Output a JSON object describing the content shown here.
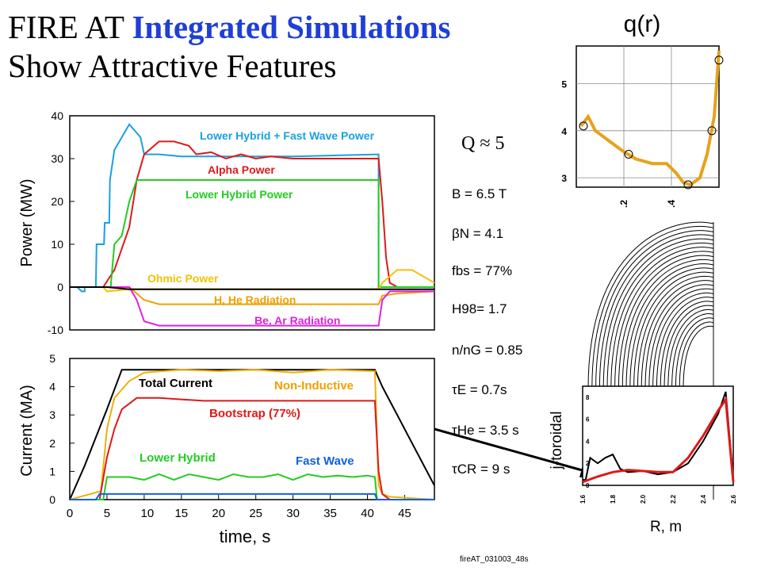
{
  "title": {
    "line1_prefix": "FIRE AT ",
    "line1_highlight": "Integrated Simulations",
    "line2": "Show Attractive Features"
  },
  "q_ratio": "Q ≈ 5",
  "params": [
    {
      "label": "B = 6.5 T"
    },
    {
      "label": "βN = 4.1"
    },
    {
      "label": "fbs = 77%"
    },
    {
      "label": "H98= 1.7"
    },
    {
      "label": "n/nG = 0.85"
    },
    {
      "label": "τE = 0.7s"
    },
    {
      "label": "τHe = 3.5 s"
    },
    {
      "label": "τCR = 9 s"
    }
  ],
  "footer": "fireAT_031003_48s",
  "colors": {
    "title_highlight": "#1f3fd6",
    "cyan": "#1aa0e0",
    "red": "#e01818",
    "green": "#22cc22",
    "yellow": "#f2c200",
    "orange": "#f0a000",
    "magenta": "#e020e0",
    "blue": "#1060e0",
    "black": "#000000",
    "q_orange": "#e6a21a"
  },
  "chart_data": [
    {
      "type": "line",
      "ylabel": "Power (MW)",
      "ylim": [
        -10,
        40
      ],
      "xlim": [
        0,
        49
      ],
      "yticks": [
        "40",
        "30",
        "20",
        "10",
        "0",
        "-10"
      ],
      "series": [
        {
          "name": "Lower Hybrid + Fast Wave Power",
          "color": "#1aa0e0",
          "points": [
            [
              0,
              0
            ],
            [
              1,
              0
            ],
            [
              1.6,
              -1
            ],
            [
              2,
              -1
            ],
            [
              2,
              0
            ],
            [
              3.5,
              0
            ],
            [
              3.6,
              10
            ],
            [
              4.6,
              10
            ],
            [
              4.7,
              15
            ],
            [
              5.3,
              15
            ],
            [
              5.4,
              25
            ],
            [
              6,
              32
            ],
            [
              7,
              35
            ],
            [
              8,
              38
            ],
            [
              9,
              36
            ],
            [
              9.5,
              35
            ],
            [
              10,
              31
            ],
            [
              12,
              31
            ],
            [
              15,
              30.5
            ],
            [
              20,
              30.5
            ],
            [
              30,
              30.5
            ],
            [
              41.5,
              31
            ],
            [
              41.5,
              0
            ],
            [
              44,
              0
            ],
            [
              49,
              0
            ]
          ]
        },
        {
          "name": "Alpha Power",
          "color": "#e01818",
          "points": [
            [
              0,
              0
            ],
            [
              4.5,
              0
            ],
            [
              6,
              4
            ],
            [
              8,
              14
            ],
            [
              9,
              25
            ],
            [
              10,
              31
            ],
            [
              12,
              34
            ],
            [
              14,
              34
            ],
            [
              16,
              33
            ],
            [
              17,
              31
            ],
            [
              19,
              31.5
            ],
            [
              21,
              30
            ],
            [
              23,
              31
            ],
            [
              25,
              30
            ],
            [
              27,
              30.5
            ],
            [
              30,
              30
            ],
            [
              33,
              30
            ],
            [
              36,
              30
            ],
            [
              41.5,
              30
            ],
            [
              42,
              20
            ],
            [
              42.5,
              7
            ],
            [
              43,
              1
            ],
            [
              44,
              0
            ],
            [
              49,
              0
            ]
          ]
        },
        {
          "name": "Lower Hybrid Power",
          "color": "#22cc22",
          "points": [
            [
              0,
              0
            ],
            [
              5.5,
              0
            ],
            [
              6,
              10
            ],
            [
              7,
              12
            ],
            [
              7.5,
              16
            ],
            [
              8,
              20
            ],
            [
              9,
              25
            ],
            [
              41.5,
              25
            ],
            [
              41.5,
              0
            ],
            [
              49,
              0
            ]
          ]
        },
        {
          "name": "Ohmic Power",
          "color": "#f2c200",
          "points": [
            [
              0,
              0
            ],
            [
              4.5,
              0
            ],
            [
              5,
              -1
            ],
            [
              8,
              -0.5
            ],
            [
              41.5,
              -0.5
            ],
            [
              42,
              1
            ],
            [
              44,
              4
            ],
            [
              46,
              4
            ],
            [
              49,
              1
            ]
          ]
        },
        {
          "name": "H, He Radiation",
          "color": "#f0a000",
          "points": [
            [
              0,
              0
            ],
            [
              8,
              0
            ],
            [
              10,
              -3
            ],
            [
              12,
              -4
            ],
            [
              41.5,
              -4
            ],
            [
              42,
              -2
            ],
            [
              44,
              -1.5
            ],
            [
              49,
              -1
            ]
          ]
        },
        {
          "name": "Be, Ar Radiation",
          "color": "#e020e0",
          "points": [
            [
              0,
              0
            ],
            [
              8,
              0
            ],
            [
              9,
              -3
            ],
            [
              10,
              -8
            ],
            [
              12,
              -9
            ],
            [
              15,
              -9
            ],
            [
              30,
              -9
            ],
            [
              41.5,
              -9
            ],
            [
              42,
              -3
            ],
            [
              43,
              -1
            ],
            [
              49,
              -1
            ]
          ]
        },
        {
          "name": "",
          "color": "#000000",
          "points": [
            [
              0,
              0
            ],
            [
              5,
              0
            ],
            [
              8,
              -0.5
            ],
            [
              41.5,
              -0.5
            ],
            [
              42,
              -0.5
            ],
            [
              44,
              -0.5
            ],
            [
              49,
              -0.5
            ]
          ]
        }
      ]
    },
    {
      "type": "line",
      "xlabel": "time, s",
      "ylabel": "Current (MA)",
      "ylim": [
        0,
        5
      ],
      "xlim": [
        0,
        49
      ],
      "xticks": [
        "0",
        "5",
        "10",
        "15",
        "20",
        "25",
        "30",
        "35",
        "40",
        "45"
      ],
      "yticks": [
        "5",
        "4",
        "3",
        "2",
        "1",
        "0"
      ],
      "series": [
        {
          "name": "Total Current",
          "color": "#000000",
          "points": [
            [
              0,
              0
            ],
            [
              2,
              1.2
            ],
            [
              5,
              3.2
            ],
            [
              7,
              4.6
            ],
            [
              8,
              4.6
            ],
            [
              10,
              4.6
            ],
            [
              41,
              4.6
            ],
            [
              42,
              4
            ],
            [
              44,
              3
            ],
            [
              46,
              2
            ],
            [
              48,
              1
            ],
            [
              49,
              0.5
            ]
          ]
        },
        {
          "name": "Non-Inductive",
          "color": "#f0b000",
          "points": [
            [
              0,
              0
            ],
            [
              4.2,
              0.3
            ],
            [
              5,
              2.5
            ],
            [
              6,
              3.6
            ],
            [
              8,
              4.2
            ],
            [
              10,
              4.5
            ],
            [
              15,
              4.6
            ],
            [
              20,
              4.55
            ],
            [
              25,
              4.6
            ],
            [
              30,
              4.5
            ],
            [
              35,
              4.6
            ],
            [
              41,
              4.55
            ],
            [
              41.5,
              0.5
            ],
            [
              42,
              0.2
            ],
            [
              43,
              0.1
            ],
            [
              49,
              0
            ]
          ]
        },
        {
          "name": "Bootstrap (77%)",
          "color": "#e01818",
          "points": [
            [
              0,
              0
            ],
            [
              4,
              0
            ],
            [
              5,
              1.5
            ],
            [
              6,
              2.5
            ],
            [
              7,
              3.2
            ],
            [
              9,
              3.6
            ],
            [
              12,
              3.6
            ],
            [
              15,
              3.55
            ],
            [
              18,
              3.5
            ],
            [
              41,
              3.5
            ],
            [
              41.5,
              1
            ],
            [
              42,
              0.2
            ],
            [
              43,
              0
            ],
            [
              49,
              0
            ]
          ]
        },
        {
          "name": "Lower Hybrid",
          "color": "#22cc22",
          "points": [
            [
              0,
              0
            ],
            [
              4.5,
              0
            ],
            [
              5,
              0.8
            ],
            [
              8,
              0.8
            ],
            [
              10,
              0.7
            ],
            [
              12,
              0.9
            ],
            [
              14,
              0.7
            ],
            [
              16,
              0.9
            ],
            [
              18,
              0.8
            ],
            [
              20,
              0.7
            ],
            [
              22,
              0.9
            ],
            [
              24,
              0.8
            ],
            [
              26,
              0.8
            ],
            [
              28,
              0.9
            ],
            [
              30,
              0.7
            ],
            [
              32,
              0.9
            ],
            [
              34,
              0.8
            ],
            [
              36,
              0.85
            ],
            [
              38,
              0.8
            ],
            [
              40,
              0.85
            ],
            [
              41,
              0.8
            ],
            [
              41.3,
              0
            ],
            [
              49,
              0
            ]
          ]
        },
        {
          "name": "Fast Wave",
          "color": "#1060e0",
          "points": [
            [
              0,
              0
            ],
            [
              3.5,
              0
            ],
            [
              4,
              0.2
            ],
            [
              41,
              0.2
            ],
            [
              41.3,
              0
            ],
            [
              49,
              0
            ]
          ]
        }
      ]
    },
    {
      "type": "line",
      "title": "q(r)",
      "xticks": [
        ".2",
        ".4"
      ],
      "yticks": [
        "5",
        "4",
        "3"
      ],
      "xlim": [
        0,
        0.6
      ],
      "ylim": [
        2.8,
        5.8
      ],
      "series": [
        {
          "name": "",
          "color": "#e6a21a",
          "points": [
            [
              0.02,
              4.1
            ],
            [
              0.05,
              4.3
            ],
            [
              0.08,
              4.0
            ],
            [
              0.12,
              3.85
            ],
            [
              0.16,
              3.7
            ],
            [
              0.2,
              3.55
            ],
            [
              0.25,
              3.4
            ],
            [
              0.32,
              3.3
            ],
            [
              0.38,
              3.3
            ],
            [
              0.42,
              3.1
            ],
            [
              0.45,
              2.9
            ],
            [
              0.48,
              2.85
            ],
            [
              0.52,
              3.0
            ],
            [
              0.55,
              3.5
            ],
            [
              0.58,
              4.3
            ],
            [
              0.6,
              5.7
            ]
          ]
        }
      ]
    },
    {
      "type": "line",
      "xlabel": "R, m",
      "ylabel": "j-toroidal",
      "xticks": [
        "1.6",
        "1.8",
        "2.0",
        "2.2",
        "2.4",
        "2.6"
      ],
      "yticks": [
        "8",
        "6",
        "4",
        "2",
        "0"
      ],
      "xlim": [
        1.6,
        2.6
      ],
      "ylim": [
        0,
        9
      ],
      "series": [
        {
          "name": "",
          "color": "#000000",
          "points": [
            [
              1.6,
              0.5
            ],
            [
              1.62,
              0.5
            ],
            [
              1.65,
              2.5
            ],
            [
              1.7,
              2
            ],
            [
              1.75,
              2.5
            ],
            [
              1.8,
              2.8
            ],
            [
              1.85,
              1.5
            ],
            [
              1.9,
              1.2
            ],
            [
              2.0,
              1.3
            ],
            [
              2.1,
              1.0
            ],
            [
              2.2,
              1.2
            ],
            [
              2.3,
              2
            ],
            [
              2.4,
              4
            ],
            [
              2.5,
              6.5
            ],
            [
              2.55,
              8.5
            ],
            [
              2.6,
              0.5
            ]
          ]
        },
        {
          "name": "",
          "color": "#e01818",
          "points": [
            [
              1.6,
              0.3
            ],
            [
              1.7,
              0.8
            ],
            [
              1.8,
              1.2
            ],
            [
              1.9,
              1.4
            ],
            [
              2.0,
              1.3
            ],
            [
              2.1,
              1.2
            ],
            [
              2.2,
              1.2
            ],
            [
              2.3,
              2.5
            ],
            [
              2.4,
              4.5
            ],
            [
              2.5,
              6.8
            ],
            [
              2.55,
              7.8
            ],
            [
              2.6,
              0.3
            ]
          ]
        }
      ]
    }
  ]
}
